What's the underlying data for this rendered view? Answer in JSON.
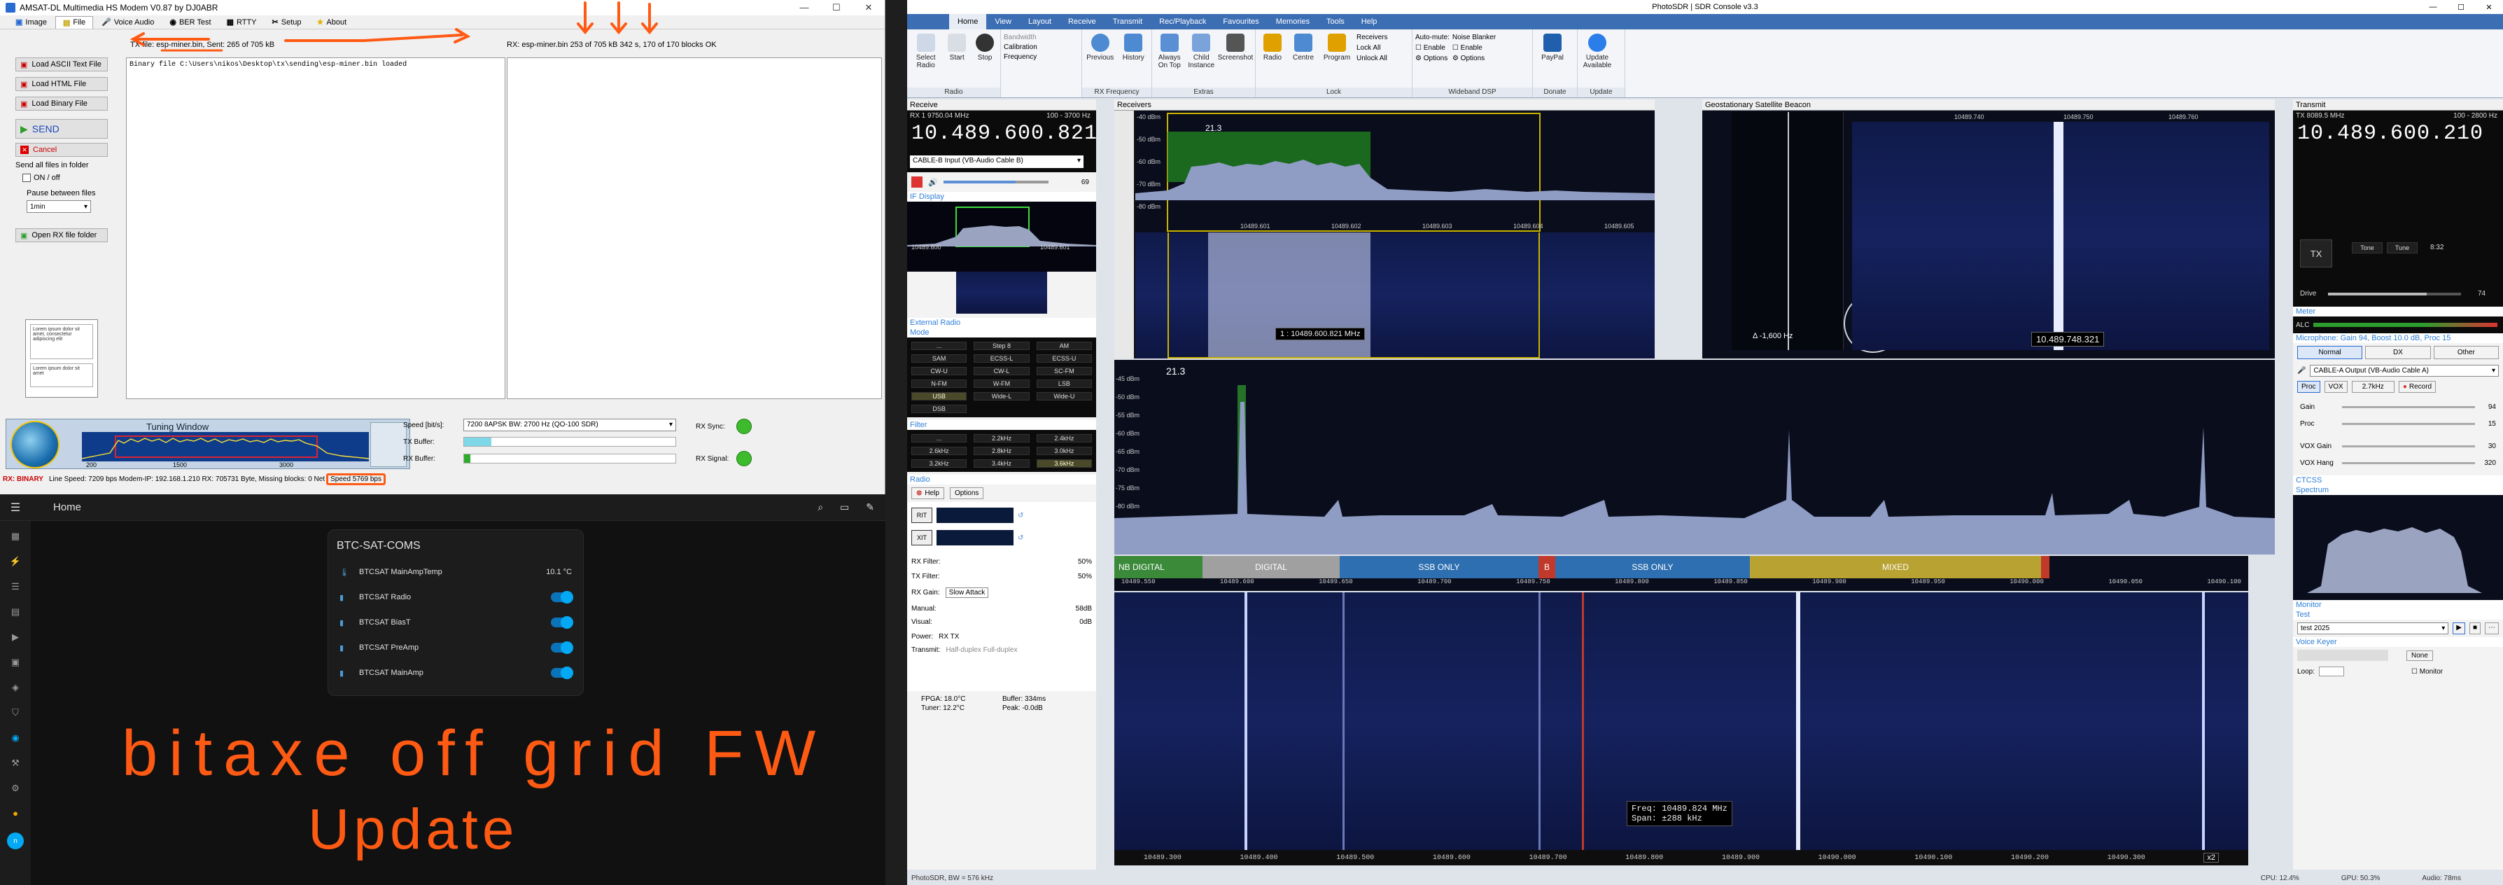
{
  "modem": {
    "title": "AMSAT-DL Multimedia HS Modem V0.87 by DJ0ABR",
    "menu": [
      "Image",
      "File",
      "Voice Audio",
      "BER Test",
      "RTTY",
      "Setup",
      "About"
    ],
    "tx_status": "TX file: esp-miner.bin, Sent: 265 of 705 kB",
    "rx_status": "RX: esp-miner.bin 253 of 705 kB 342 s, 170 of 170 blocks OK",
    "buttons": {
      "load_ascii": "Load ASCII Text File",
      "load_html": "Load HTML File",
      "load_binary": "Load Binary File",
      "send": "SEND",
      "cancel": "Cancel"
    },
    "send_all_label": "Send all files in folder",
    "on_off": "ON / off",
    "pause_label": "Pause between files",
    "pause_value": "1min",
    "open_rx": "Open RX file folder",
    "tx_log": "Binary file C:\\Users\\nikos\\Desktop\\tx\\sending\\esp-miner.bin loaded",
    "tuning_title": "Tuning Window",
    "tuning_ticks": [
      "200",
      "1500",
      "3000"
    ],
    "speed_label": "Speed [bit/s]:",
    "speed_value": "7200 8APSK BW: 2700 Hz (QO-100 SDR)",
    "tx_buffer": "TX Buffer:",
    "rx_buffer": "RX Buffer:",
    "rx_sync": "RX Sync:",
    "rx_signal": "RX Signal:",
    "statusbar_mode": "RX: BINARY",
    "statusbar": "Line Speed: 7209 bps  Modem-IP: 192.168.1.210  RX: 705731 Byte, Missing blocks: 0  Net",
    "statusbar_speed": "Speed 5769 bps",
    "thumb1": "Lorem ipsum dolor sit amet, consectetur adipiscing elit",
    "thumb2": "Lorem ipsum dolor sit amet"
  },
  "ha": {
    "home_title": "Home",
    "card_title": "BTC-SAT-COMS",
    "rows": [
      {
        "label": "BTCSAT MainAmpTemp",
        "value": "10.1 °C",
        "icon": "thermometer-icon"
      },
      {
        "label": "BTCSAT Radio",
        "icon": "switch-icon"
      },
      {
        "label": "BTCSAT BiasT",
        "icon": "switch-icon"
      },
      {
        "label": "BTCSAT PreAmp",
        "icon": "switch-icon"
      },
      {
        "label": "BTCSAT MainAmp",
        "icon": "switch-icon"
      }
    ]
  },
  "annotation": {
    "line1": "bitaxe off grid FW",
    "line2": "Update",
    "color": "#ff5a14"
  },
  "sdr": {
    "title": "PhotoSDR | SDR Console v3.3",
    "tabs": [
      "Home",
      "View",
      "Layout",
      "Receive",
      "Transmit",
      "Rec/Playback",
      "Favourites",
      "Memories",
      "Tools",
      "Help"
    ],
    "ribbon": [
      {
        "label": "Radio",
        "buttons": [
          "Select Radio",
          "Start",
          "Stop"
        ]
      },
      {
        "label": "",
        "buttons": [
          "Bandwidth",
          "Calibration",
          "Frequency"
        ]
      },
      {
        "label": "RX Frequency",
        "buttons": [
          "Previous",
          "History"
        ]
      },
      {
        "label": "Extras",
        "buttons": [
          "Always On Top",
          "Child Instance",
          "Screenshot"
        ]
      },
      {
        "label": "Lock",
        "buttons": [
          "Radio",
          "Centre",
          "Program",
          "Receivers",
          "Lock All",
          "Unlock All"
        ]
      },
      {
        "label": "Wideband DSP",
        "buttons": [
          "Auto-mute:",
          "Enable",
          "Options",
          "Noise Blanker",
          "Enable",
          "Options"
        ]
      },
      {
        "label": "Donate",
        "buttons": [
          "PayPal"
        ]
      },
      {
        "label": "Update",
        "buttons": [
          "Update Available"
        ]
      }
    ],
    "receive": {
      "head": "Receive",
      "rx1": "RX 1  9750.04 MHz",
      "range": "100 - 3700 Hz",
      "freq": "10.489.600.821",
      "input": "CABLE-B Input (VB-Audio Cable B)",
      "vol": "69"
    },
    "if_display": "IF Display",
    "if_ticks": [
      "10489.600",
      "10489.601"
    ],
    "ext_radio": "External Radio",
    "mode_label": "Mode",
    "modes": [
      "...",
      "Step 8",
      "AM",
      "SAM",
      "ECSS-L",
      "ECSS-U",
      "CW-U",
      "CW-L",
      "SC-FM",
      "N-FM",
      "W-FM",
      "LSB",
      "USB",
      "Wide-L",
      "Wide-U",
      "DSB"
    ],
    "filter_label": "Filter",
    "filters": [
      "...",
      "2.2kHz",
      "2.4kHz",
      "2.6kHz",
      "2.8kHz",
      "3.0kHz",
      "3.2kHz",
      "3.4kHz",
      "3.6kHz"
    ],
    "radio_label": "Radio",
    "radio_btns": [
      "Help",
      "Options"
    ],
    "rit": "RIT",
    "xit": "XIT",
    "rx_filter": "RX Filter:",
    "tx_filter": "TX Filter:",
    "filter_pct": "50%",
    "rx_gain": "RX Gain:",
    "rx_gain_val": "Slow Attack",
    "manual": "Manual:",
    "manual_val": "58dB",
    "visual": "Visual:",
    "visual_val": "0dB",
    "power": "Power:",
    "power_opts": "RX   TX",
    "transmit_opts": "Half-duplex   Full-duplex",
    "transmit_lbl": "Transmit:",
    "fpga": "FPGA: 18.0°C",
    "tuner": "Tuner: 12.2°C",
    "buffer": "Buffer: 334ms",
    "peak": "Peak: -0.0dB",
    "receivers_head": "Receivers",
    "rx_dbs": [
      "-40 dBm",
      "-50 dBm",
      "-60 dBm",
      "-70 dBm",
      "-80 dBm"
    ],
    "rx_ticks": [
      "10489.601",
      "10489.602",
      "10489.603",
      "10489.604",
      "10489.605"
    ],
    "rx_snr": "21.3",
    "rx_freq_overlay": "1 : 10489.600.821 MHz",
    "geo_head": "Geostationary Satellite Beacon",
    "geo_ticks": [
      "10489.740",
      "10489.750",
      "10489.760"
    ],
    "geo_delta": "Δ -1,600 Hz",
    "geo_freq": "10.489.748.321",
    "spectrum_snr": "21.3",
    "spec_dbs": [
      "-45 dBm",
      "-50 dBm",
      "-55 dBm",
      "-60 dBm",
      "-65 dBm",
      "-70 dBm",
      "-75 dBm",
      "-80 dBm"
    ],
    "band_segments": [
      {
        "label": "NB DIGITAL",
        "color": "#3a8a3a"
      },
      {
        "label": "DIGITAL",
        "color": "#a0a0a0"
      },
      {
        "label": "SSB ONLY",
        "color": "#2d6fb0"
      },
      {
        "label": "B",
        "color": "#c0392b"
      },
      {
        "label": "SSB ONLY",
        "color": "#2d6fb0"
      },
      {
        "label": "MIXED",
        "color": "#b8a232"
      },
      {
        "label": "",
        "color": "#c0392b"
      }
    ],
    "band_ticks": [
      "10489.550",
      "10489.600",
      "10489.650",
      "10489.700",
      "10489.750",
      "10489.800",
      "10489.850",
      "10489.900",
      "10489.950",
      "10490.000",
      "10490.050",
      "10490.100"
    ],
    "wf_ticks": [
      "10489.300",
      "10489.400",
      "10489.500",
      "10489.600",
      "10489.700",
      "10489.800",
      "10489.900",
      "10490.000",
      "10490.100",
      "10490.200",
      "10490.300"
    ],
    "wf_overlay_freq": "Freq: 10489.824 MHz",
    "wf_overlay_span": "Span:     ±288 kHz",
    "zoom": "x2",
    "transmit": {
      "head": "Transmit",
      "tx1": "TX  8089.5 MHz",
      "range": "100 - 2800 Hz",
      "freq": "10.489.600.210",
      "tx_btn": "TX",
      "tone": "Tone",
      "tune": "Tune",
      "time": "8:32",
      "drive": "Drive",
      "drive_val": "74"
    },
    "meter_label": "Meter",
    "alc": "ALC",
    "mic_label": "Microphone: Gain 94, Boost 10.0 dB, Proc 15",
    "mic_tabs": [
      "Normal",
      "DX",
      "Other"
    ],
    "output": "CABLE-A Output (VB-Audio Cable A)",
    "proc": "Proc",
    "vox": "VOX",
    "vox_val": "2.7kHz",
    "record": "Record",
    "sliders": [
      {
        "label": "Gain",
        "value": "94"
      },
      {
        "label": "Proc",
        "value": "15"
      },
      {
        "label": "VOX Gain",
        "value": "30"
      },
      {
        "label": "VOX Hang",
        "value": "320"
      }
    ],
    "ctcss": "CTCSS",
    "spectrum_lbl": "Spectrum",
    "monitor": "Monitor",
    "test_lbl": "Test",
    "test_val": "test 2025",
    "voice_keyer": "Voice Keyer",
    "none": "None",
    "loop": "Loop:",
    "monitor_chk": "Monitor",
    "statusbar": "PhotoSDR, BW = 576 kHz",
    "cpu": "CPU: 12.4%",
    "gpu": "GPU: 50.3%",
    "audio": "Audio: 78ms"
  }
}
